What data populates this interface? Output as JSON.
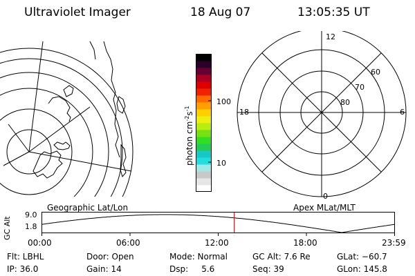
{
  "header": {
    "instrument": "Ultraviolet Imager",
    "date": "18 Aug 07",
    "time": "13:05:35 UT"
  },
  "colorbar": {
    "unit_label": "photon cm",
    "unit_exp": "-2",
    "unit_s": "s",
    "unit_s_exp": "-1",
    "tick_labels": [
      "100",
      "10"
    ],
    "colors": [
      "#ffffff",
      "#e6e6e6",
      "#c8c8c8",
      "#9ee8e8",
      "#22dddd",
      "#18c8c8",
      "#22cc55",
      "#33dd22",
      "#77e011",
      "#b6ee11",
      "#eeee11",
      "#ffd000",
      "#ffa000",
      "#ff6a00",
      "#ee2200",
      "#dd0000",
      "#aa0022",
      "#660033",
      "#2a002a",
      "#000000"
    ]
  },
  "polar": {
    "top_label": "12",
    "left_label": "18",
    "right_label": "6",
    "bottom_label": "0",
    "lat_labels": [
      "60",
      "70",
      "80"
    ]
  },
  "timeline": {
    "left_title": "Geographic Lat/Lon",
    "right_title": "Apex MLat/MLT",
    "y_axis_label": "GC Alt",
    "y_max": "9.0",
    "y_min": "1.8",
    "x_ticks": [
      "00:00",
      "06:00",
      "12:00",
      "18:00",
      "23:59"
    ],
    "current_time_hours": 13.09,
    "marker_color": "#ff0000"
  },
  "info": {
    "row1": [
      {
        "label": "Flt: LBHL"
      },
      {
        "label": "Door: Open"
      },
      {
        "label": "Mode: Normal"
      },
      {
        "label": "GC Alt: 7.6 Re"
      },
      {
        "label": "GLat: −60.7"
      }
    ],
    "row2": [
      {
        "label": "IP: 36.0"
      },
      {
        "label": "Gain: 14"
      },
      {
        "label": "Dsp:     5.6"
      },
      {
        "label": "Seq: 39"
      },
      {
        "label": "GLon: 145.8"
      }
    ]
  }
}
